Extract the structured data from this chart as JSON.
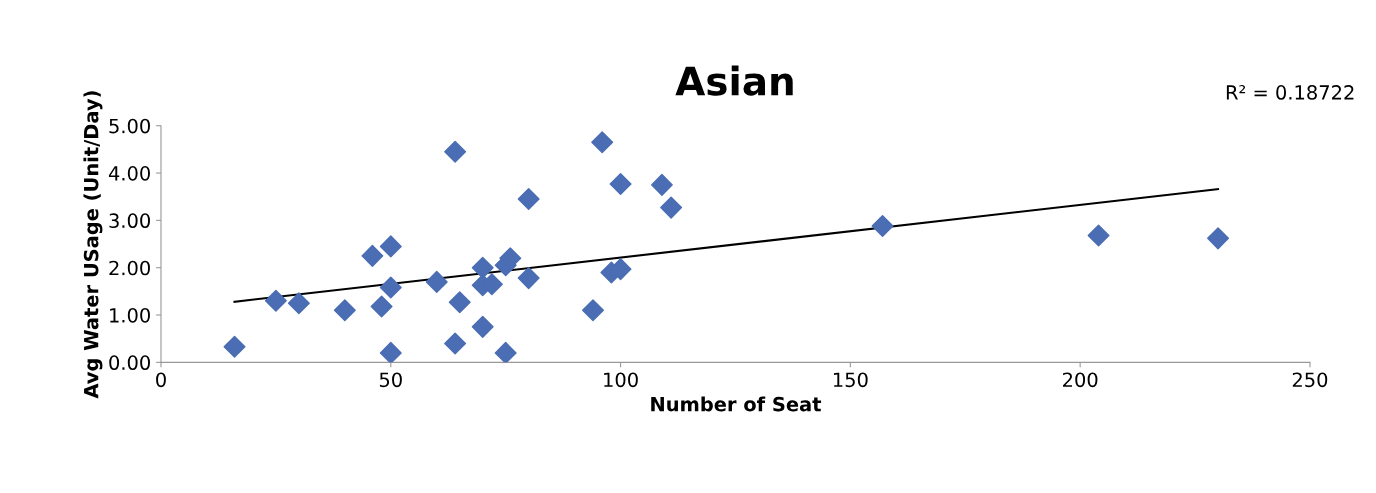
{
  "chart_data": {
    "type": "scatter",
    "title": "Asian",
    "xlabel": "Number of Seat",
    "ylabel": "Avg Water USage (Unit/Day)",
    "annotations": [
      "R² = 0.18722"
    ],
    "marker": "diamond",
    "grid": false,
    "legend": false,
    "xlim": [
      0,
      250
    ],
    "xticks": [
      0,
      50,
      100,
      150,
      200,
      250
    ],
    "ylim": [
      0,
      5
    ],
    "yticks": [
      {
        "value": 0,
        "label": "0.00"
      },
      {
        "value": 1,
        "label": "1.00"
      },
      {
        "value": 2,
        "label": "2.00"
      },
      {
        "value": 3,
        "label": "3.00"
      },
      {
        "value": 4,
        "label": "4.00"
      },
      {
        "value": 5,
        "label": "5.00"
      }
    ],
    "series": [
      {
        "color": "#4a6db4",
        "x": [
          16,
          25,
          30,
          40,
          46,
          48,
          50,
          50,
          50,
          60,
          64,
          64,
          65,
          70,
          70,
          70,
          72,
          75,
          76,
          75,
          80,
          80,
          94,
          96,
          98,
          100,
          100,
          109,
          111,
          157,
          204,
          230
        ],
        "values": [
          0.33,
          1.3,
          1.25,
          1.1,
          2.25,
          1.18,
          2.45,
          1.58,
          0.2,
          1.7,
          4.45,
          0.4,
          1.27,
          2.0,
          1.63,
          0.75,
          1.65,
          2.05,
          2.2,
          0.2,
          3.45,
          1.78,
          1.1,
          4.65,
          1.9,
          1.97,
          3.77,
          3.75,
          3.27,
          2.88,
          2.68,
          2.62
        ]
      },
      {
        "type": "line",
        "color": "#000000",
        "marker": "none",
        "line_style": "solid",
        "x": [
          16,
          230
        ],
        "values": [
          1.28,
          3.66
        ]
      }
    ]
  }
}
